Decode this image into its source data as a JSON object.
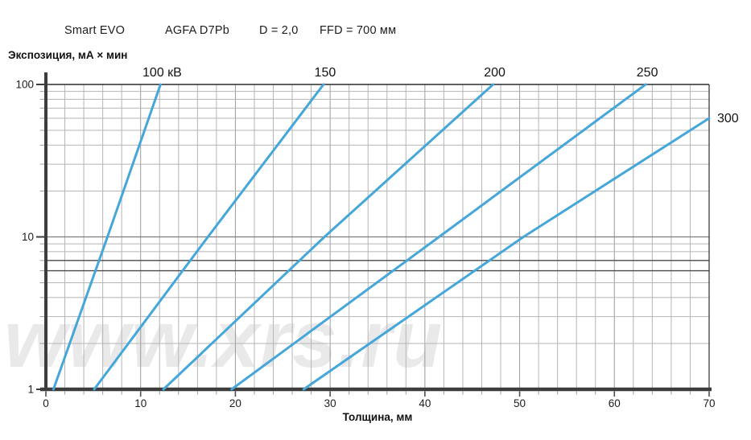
{
  "header": {
    "device": "Smart EVO",
    "film": "AGFA D7Pb",
    "density": "D = 2,0",
    "ffd": "FFD = 700 мм"
  },
  "y_axis_title": "Экспозиция, мА × мин",
  "x_axis_title": "Толщина, мм",
  "watermark": "www.xrs.ru",
  "colors": {
    "curve": "#45a7d9",
    "grid_minor": "#b5b5b5",
    "grid_major": "#9a9a9a",
    "grid_decade": "#7d7d7d",
    "grid_emphasized": "#4a4a4a",
    "axis": "#3d3d3d",
    "border": "#2b2b2b",
    "text": "#1d1d1f",
    "watermark": "#e9e9e9"
  },
  "chart_data": {
    "type": "line",
    "title": "Exposure chart Smart EVO, AGFA D7Pb, D = 2,0, FFD = 700 мм",
    "xlabel": "Толщина, мм",
    "ylabel": "Экспозиция, мА × мин",
    "x_axis": {
      "min": 0,
      "max": 70,
      "major_step": 10,
      "minor_step": 2
    },
    "y_axis": {
      "scale": "log",
      "min": 1,
      "max": 100,
      "ticks": [
        1,
        10,
        100
      ],
      "emphasized_gridlines": [
        6,
        7
      ]
    },
    "legend_position": "labels-on-curves",
    "series": [
      {
        "name": "100 кВ",
        "label_unit_shown": true,
        "points": [
          [
            0.8,
            1
          ],
          [
            6.5,
            10
          ],
          [
            12.1,
            100
          ]
        ]
      },
      {
        "name": "150",
        "label_unit_shown": false,
        "points": [
          [
            5.1,
            1
          ],
          [
            17.1,
            10
          ],
          [
            29.3,
            100
          ]
        ]
      },
      {
        "name": "200",
        "label_unit_shown": false,
        "points": [
          [
            12.4,
            1
          ],
          [
            29.4,
            10
          ],
          [
            47.2,
            100
          ]
        ]
      },
      {
        "name": "250",
        "label_unit_shown": false,
        "points": [
          [
            19.6,
            1
          ],
          [
            41.5,
            10
          ],
          [
            63.3,
            100
          ]
        ]
      },
      {
        "name": "300",
        "label_unit_shown": false,
        "points": [
          [
            27.2,
            1
          ],
          [
            50.4,
            10
          ],
          [
            70,
            60
          ]
        ]
      }
    ]
  }
}
